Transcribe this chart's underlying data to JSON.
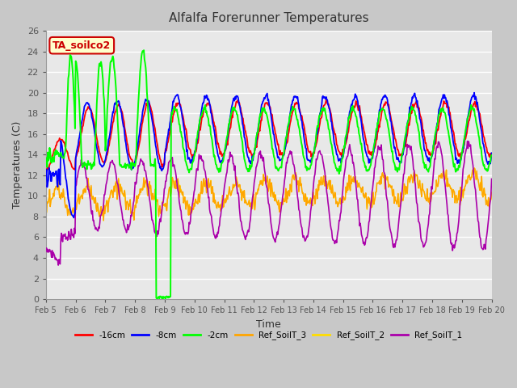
{
  "title": "Alfalfa Forerunner Temperatures",
  "xlabel": "Time",
  "ylabel": "Temperatures (C)",
  "annotation_text": "TA_soilco2",
  "annotation_facecolor": "#ffffcc",
  "annotation_edgecolor": "#cc0000",
  "annotation_textcolor": "#cc0000",
  "ylim": [
    0,
    26
  ],
  "yticks": [
    0,
    2,
    4,
    6,
    8,
    10,
    12,
    14,
    16,
    18,
    20,
    22,
    24,
    26
  ],
  "figsize": [
    6.4,
    4.8
  ],
  "dpi": 100,
  "fig_facecolor": "#c8c8c8",
  "axes_facecolor": "#e8e8e8",
  "grid_color": "#ffffff",
  "line_colors": {
    "m16cm": "#ff0000",
    "m8cm": "#0000ff",
    "m2cm": "#00ff00",
    "ref3": "#ffa500",
    "ref2": "#ffdd00",
    "ref1": "#aa00aa"
  },
  "legend_labels": [
    "-16cm",
    "-8cm",
    "-2cm",
    "Ref_SoilT_3",
    "Ref_SoilT_2",
    "Ref_SoilT_1"
  ],
  "legend_colors": [
    "#ff0000",
    "#0000ff",
    "#00ff00",
    "#ffa500",
    "#ffdd00",
    "#aa00aa"
  ]
}
